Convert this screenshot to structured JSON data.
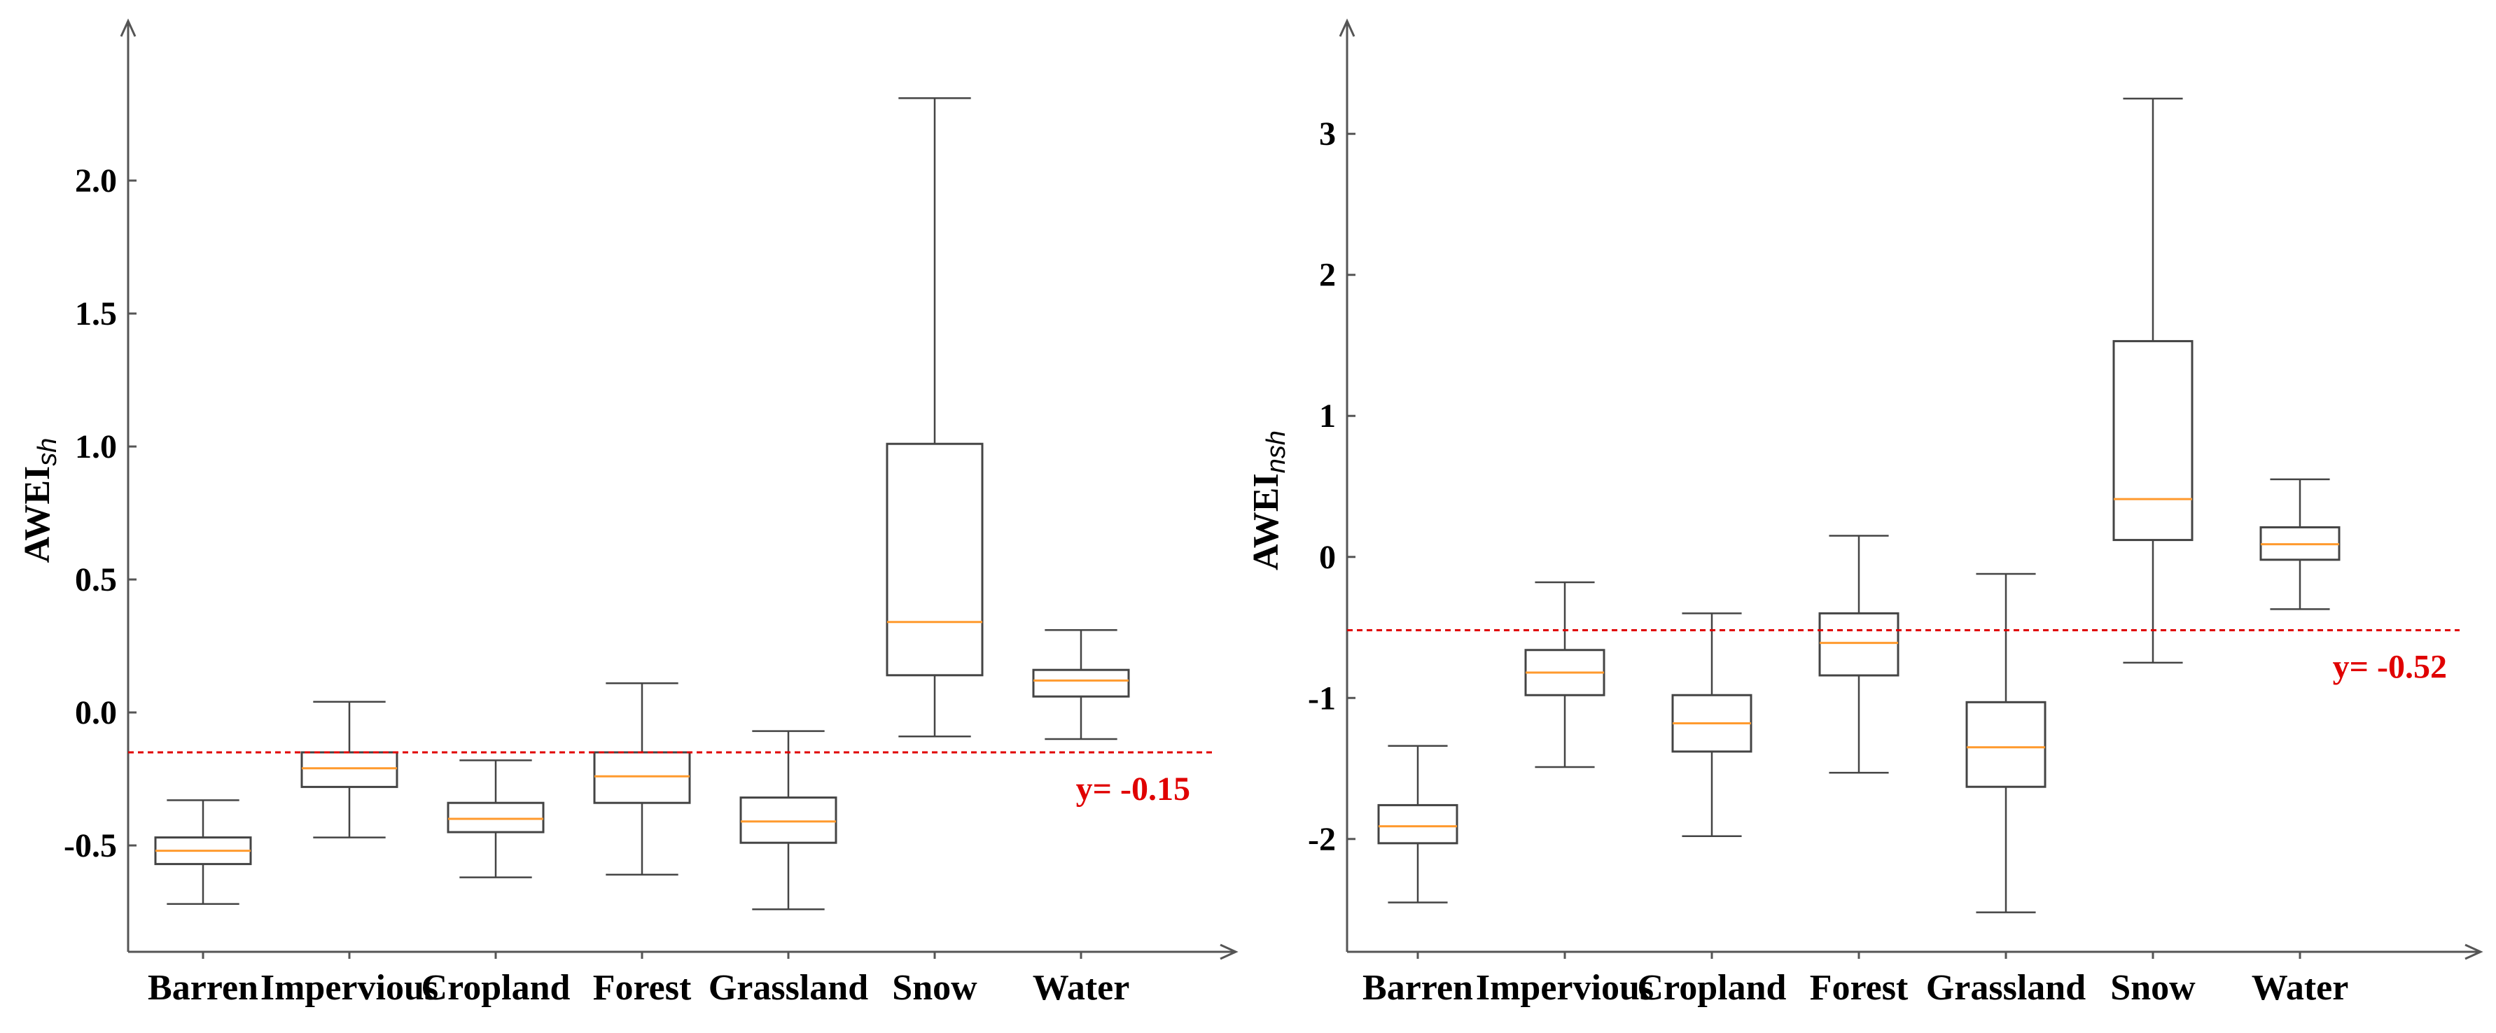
{
  "chart_data": [
    {
      "type": "box",
      "title": "",
      "xlabel": "",
      "ylabel": "AWEI",
      "ylabel_sub": "sh",
      "ylim": [
        -0.9,
        2.6
      ],
      "yticks": [
        -0.5,
        0.0,
        0.5,
        1.0,
        1.5,
        2.0
      ],
      "ytick_labels": [
        "-0.5",
        "0.0",
        "0.5",
        "1.0",
        "1.5",
        "2.0"
      ],
      "categories": [
        "Barren",
        "Impervious",
        "Cropland",
        "Forest",
        "Grassland",
        "Snow",
        "Water"
      ],
      "boxes": [
        {
          "min": -0.72,
          "q1": -0.57,
          "median": -0.52,
          "q3": -0.47,
          "max": -0.33
        },
        {
          "min": -0.47,
          "q1": -0.28,
          "median": -0.21,
          "q3": -0.15,
          "max": 0.04
        },
        {
          "min": -0.62,
          "q1": -0.45,
          "median": -0.4,
          "q3": -0.34,
          "max": -0.18
        },
        {
          "min": -0.61,
          "q1": -0.34,
          "median": -0.24,
          "q3": -0.15,
          "max": 0.11
        },
        {
          "min": -0.74,
          "q1": -0.49,
          "median": -0.41,
          "q3": -0.32,
          "max": -0.07
        },
        {
          "min": -0.09,
          "q1": 0.14,
          "median": 0.34,
          "q3": 1.01,
          "max": 2.31
        },
        {
          "min": -0.1,
          "q1": 0.06,
          "median": 0.12,
          "q3": 0.16,
          "max": 0.31
        }
      ],
      "threshold": {
        "value": -0.15,
        "label": "y= -0.15"
      }
    },
    {
      "type": "box",
      "title": "",
      "xlabel": "",
      "ylabel": "AWEI",
      "ylabel_sub": "nsh",
      "ylim": [
        -2.8,
        3.8
      ],
      "yticks": [
        -2,
        -1,
        0,
        1,
        2,
        3
      ],
      "ytick_labels": [
        "-2",
        "-1",
        "0",
        "1",
        "2",
        "3"
      ],
      "categories": [
        "Barren",
        "Impervious",
        "Cropland",
        "Forest",
        "Grassland",
        "Snow",
        "Water"
      ],
      "boxes": [
        {
          "min": -2.45,
          "q1": -2.03,
          "median": -1.91,
          "q3": -1.76,
          "max": -1.34
        },
        {
          "min": -1.49,
          "q1": -0.98,
          "median": -0.82,
          "q3": -0.66,
          "max": -0.18
        },
        {
          "min": -1.98,
          "q1": -1.38,
          "median": -1.18,
          "q3": -0.98,
          "max": -0.4
        },
        {
          "min": -1.53,
          "q1": -0.84,
          "median": -0.61,
          "q3": -0.4,
          "max": 0.15
        },
        {
          "min": -2.52,
          "q1": -1.63,
          "median": -1.35,
          "q3": -1.03,
          "max": -0.12
        },
        {
          "min": -0.75,
          "q1": 0.12,
          "median": 0.41,
          "q3": 1.53,
          "max": 3.25
        },
        {
          "min": -0.37,
          "q1": -0.02,
          "median": 0.09,
          "q3": 0.21,
          "max": 0.55
        }
      ],
      "threshold": {
        "value": -0.52,
        "label": "y= -0.52"
      }
    }
  ]
}
